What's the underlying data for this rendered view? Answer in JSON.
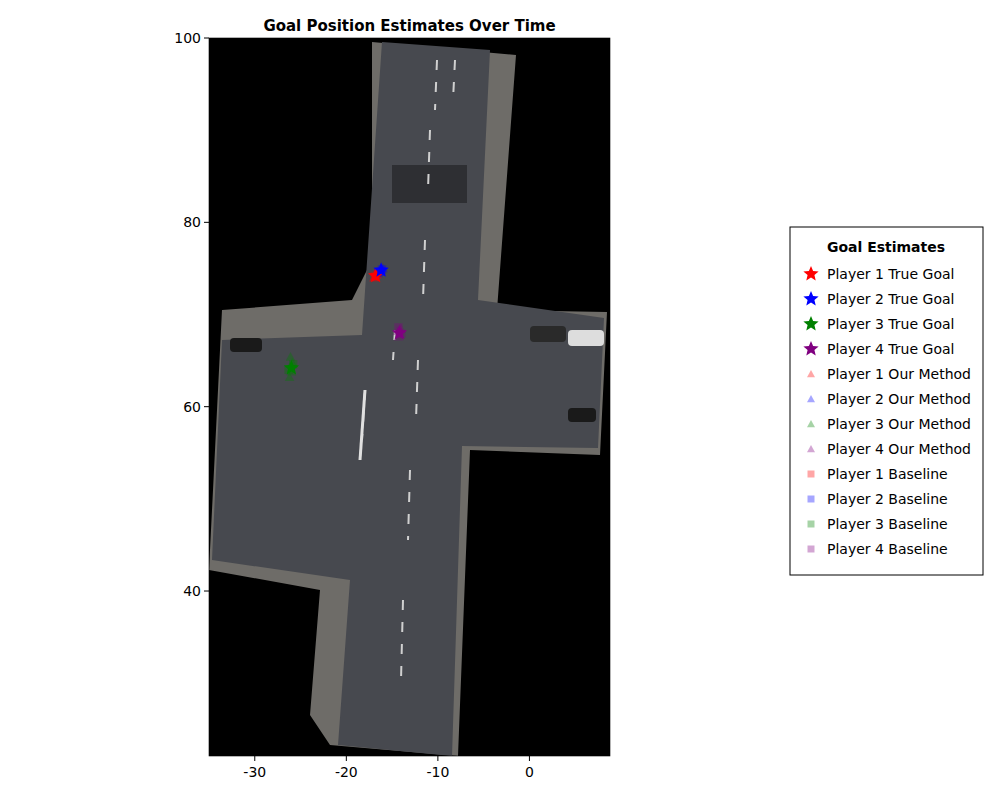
{
  "chart_data": {
    "type": "scatter",
    "title": "Goal Position Estimates Over Time",
    "legend_title": "Goal Estimates",
    "xlim": [
      -35,
      8.8
    ],
    "ylim": [
      22.1,
      100
    ],
    "xticks": [
      -30,
      -20,
      -10,
      0
    ],
    "yticks": [
      40,
      60,
      80,
      100
    ],
    "legend": "right",
    "series": [
      {
        "name": "Player 1 True Goal",
        "color": "#ff0000",
        "marker": "star",
        "x": [
          -16.8
        ],
        "y": [
          74.2
        ]
      },
      {
        "name": "Player 2 True Goal",
        "color": "#0000ff",
        "marker": "star",
        "x": [
          -16.2
        ],
        "y": [
          74.8
        ]
      },
      {
        "name": "Player 3 True Goal",
        "color": "#008000",
        "marker": "star",
        "x": [
          -26.0
        ],
        "y": [
          64.2
        ]
      },
      {
        "name": "Player 4 True Goal",
        "color": "#800080",
        "marker": "star",
        "x": [
          -14.2
        ],
        "y": [
          68.0
        ]
      },
      {
        "name": "Player 1 Our Method",
        "color": "#ff0000",
        "marker": "triangle",
        "x": [
          -16.9,
          -16.7,
          -17.0
        ],
        "y": [
          74.1,
          74.3,
          74.0
        ]
      },
      {
        "name": "Player 2 Our Method",
        "color": "#0000ff",
        "marker": "triangle",
        "x": [
          -16.3,
          -16.0,
          -16.4
        ],
        "y": [
          74.6,
          75.0,
          74.7
        ]
      },
      {
        "name": "Player 3 Our Method",
        "color": "#008000",
        "marker": "triangle",
        "x": [
          -26.2,
          -25.9,
          -26.1,
          -26.0
        ],
        "y": [
          63.2,
          64.8,
          65.4,
          63.8
        ]
      },
      {
        "name": "Player 4 Our Method",
        "color": "#800080",
        "marker": "triangle",
        "x": [
          -14.3,
          -14.1,
          -14.4
        ],
        "y": [
          67.6,
          68.5,
          68.2
        ]
      },
      {
        "name": "Player 1 Baseline",
        "color": "#ff0000",
        "marker": "square",
        "x": [
          -16.6,
          -16.9
        ],
        "y": [
          74.4,
          74.2
        ]
      },
      {
        "name": "Player 2 Baseline",
        "color": "#0000ff",
        "marker": "square",
        "x": [
          -16.1,
          -16.5
        ],
        "y": [
          74.9,
          74.5
        ]
      },
      {
        "name": "Player 3 Baseline",
        "color": "#008000",
        "marker": "square",
        "x": [
          -26.3,
          -25.8
        ],
        "y": [
          64.0,
          64.6
        ]
      },
      {
        "name": "Player 4 Baseline",
        "color": "#800080",
        "marker": "square",
        "x": [
          -14.0,
          -14.3
        ],
        "y": [
          67.9,
          68.6
        ]
      }
    ]
  }
}
